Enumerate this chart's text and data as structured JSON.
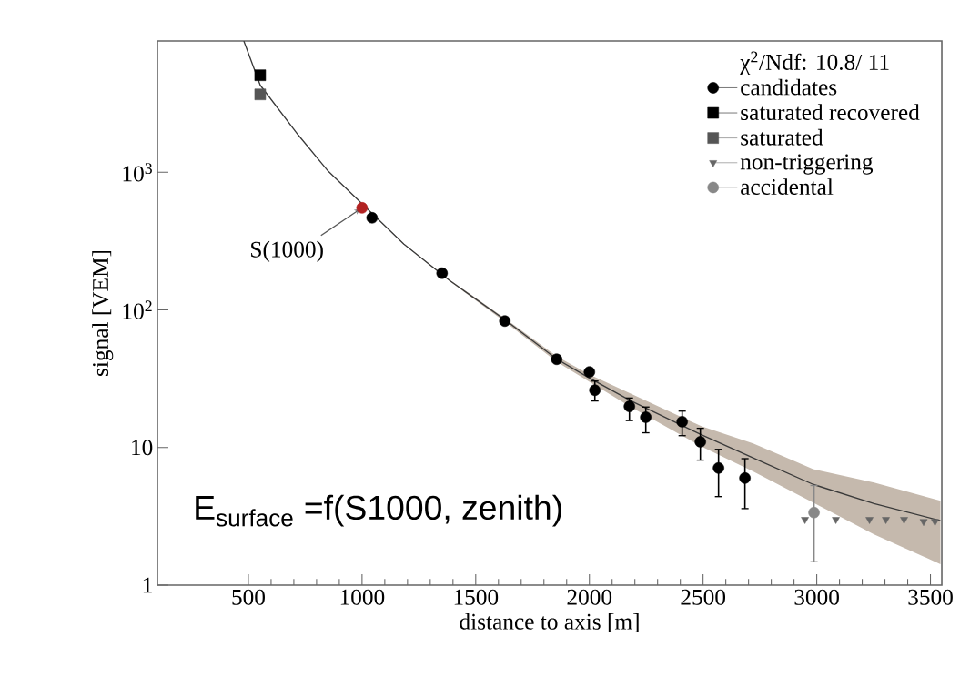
{
  "chart_data": {
    "type": "scatter",
    "xlabel": "distance to axis [m]",
    "ylabel": "signal [VEM]",
    "legend_title": "χ$^{2}$/Ndf: 10.8/ 11",
    "log": "y",
    "legend": "top right",
    "xlim": [
      100,
      3550
    ],
    "xticks": [
      500,
      1000,
      1500,
      2000,
      2500,
      3000,
      3500
    ],
    "ylim": [
      1,
      9000
    ],
    "yticks": [
      1,
      10,
      {
        "value": 100,
        "label": "10$^{2}$"
      },
      {
        "value": 1000,
        "label": "10$^{3}$"
      }
    ],
    "annotations": [
      {
        "text": "S(1000)",
        "x": 1000,
        "y": 552
      },
      "E$_{surface}$ =f(S1000, zenith)"
    ],
    "series": [
      {
        "type": "line",
        "color": "#3a3a3a",
        "x": [
          480,
          552,
          720,
          852,
          1184,
          1384,
          1628,
          1856,
          2000,
          2184,
          2492,
          2720,
          2984,
          3252,
          3544
        ],
        "values": [
          9000,
          4300,
          1860,
          1015,
          301,
          164,
          85,
          44,
          32,
          21.8,
          12.4,
          8.4,
          5.4,
          3.92,
          2.94
        ],
        "lower": [
          9000,
          4300,
          1860,
          1015,
          299,
          162,
          82,
          42,
          30,
          19.6,
          10.2,
          6.7,
          3.98,
          2.34,
          1.42
        ],
        "upper": [
          9000,
          4300,
          1860,
          1015,
          303,
          166,
          87,
          46,
          34,
          24.6,
          14.3,
          10.7,
          6.98,
          5.56,
          4.1
        ]
      },
      {
        "name": "candidates",
        "color": "#000000",
        "marker": "circle",
        "x": [
          1044,
          1352,
          1628,
          1856,
          2000,
          2024,
          2176,
          2248,
          2408,
          2488,
          2568,
          2684
        ],
        "values": [
          467,
          185,
          83,
          43.8,
          35.4,
          26.1,
          19.9,
          16.6,
          15.4,
          11.0,
          7.1,
          6.0
        ],
        "errors": [
          null,
          null,
          null,
          null,
          null,
          [
            21.8,
            30.4
          ],
          [
            15.7,
            22.9
          ],
          [
            12.8,
            19.7
          ],
          [
            12.2,
            18.4
          ],
          [
            8.1,
            13.8
          ],
          [
            4.4,
            9.7
          ],
          [
            3.6,
            8.3
          ]
        ]
      },
      {
        "name": "saturated recovered",
        "color": "#000000",
        "marker": "square",
        "x": [
          552
        ],
        "values": [
          5070
        ]
      },
      {
        "name": "saturated",
        "color": "#555555",
        "marker": "square",
        "x": [
          552
        ],
        "values": [
          3680
        ]
      },
      {
        "name": "non-triggering",
        "color": "#666666",
        "marker": "triangle",
        "x": [
          2948,
          3084,
          3232,
          3304,
          3384,
          3470,
          3520
        ],
        "values": [
          3.0,
          3.0,
          3.0,
          3.0,
          3.0,
          2.9,
          2.9
        ]
      },
      {
        "name": "accidental",
        "color": "#888888",
        "marker": "circle",
        "x": [
          2988
        ],
        "values": [
          3.37
        ],
        "errors": [
          [
            1.48,
            5.3
          ]
        ]
      },
      {
        "color": "#b22222",
        "marker": "circle",
        "x": [
          1000
        ],
        "values": [
          552
        ]
      }
    ]
  }
}
